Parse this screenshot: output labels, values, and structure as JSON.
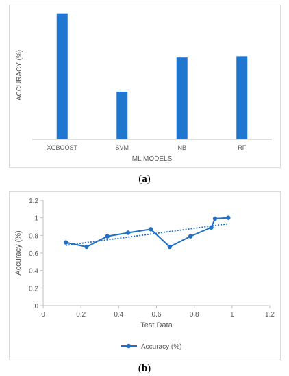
{
  "captions": {
    "a_open": "(",
    "a_letter": "a",
    "a_close": ")",
    "b_open": "(",
    "b_letter": "b",
    "b_close": ")"
  },
  "chart_data": [
    {
      "type": "bar",
      "categories": [
        "XGBOOST",
        "SVM",
        "NB",
        "RF"
      ],
      "values": [
        100,
        38,
        65,
        66
      ],
      "xlabel": "ML MODELS",
      "ylabel": "ACCURACY (%)",
      "ylim": [
        0,
        102
      ],
      "grid": false,
      "colors": {
        "bar": "#1f77d0",
        "axis": "#bfbfbf"
      }
    },
    {
      "type": "line",
      "series": [
        {
          "name": "Accuracy (%)",
          "x": [
            0.12,
            0.23,
            0.34,
            0.45,
            0.57,
            0.67,
            0.78,
            0.89,
            0.91,
            0.98
          ],
          "y": [
            0.72,
            0.67,
            0.79,
            0.83,
            0.87,
            0.67,
            0.79,
            0.89,
            0.99,
            1.0
          ]
        }
      ],
      "trendline": {
        "style": "dotted",
        "type": "linear"
      },
      "xlabel": "Test Data",
      "ylabel": "Accuracy (%)",
      "xlim": [
        0,
        1.2
      ],
      "ylim": [
        0,
        1.2
      ],
      "xticks": [
        "0",
        "0.2",
        "0.4",
        "0.6",
        "0.8",
        "1",
        "1.2"
      ],
      "yticks": [
        "0",
        "0.2",
        "0.4",
        "0.6",
        "0.8",
        "1",
        "1.2"
      ],
      "legend": "bottom",
      "grid": false,
      "colors": {
        "line": "#1f6fc4",
        "axis": "#bfbfbf"
      }
    }
  ]
}
